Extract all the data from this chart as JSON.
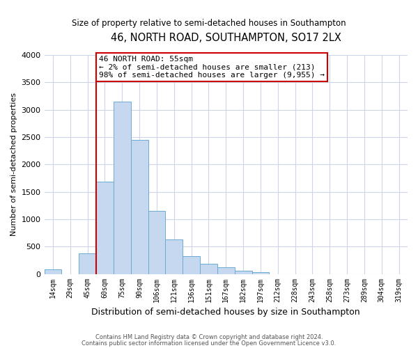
{
  "title": "46, NORTH ROAD, SOUTHAMPTON, SO17 2LX",
  "subtitle": "Size of property relative to semi-detached houses in Southampton",
  "xlabel": "Distribution of semi-detached houses by size in Southampton",
  "ylabel": "Number of semi-detached properties",
  "bin_labels": [
    "14sqm",
    "29sqm",
    "45sqm",
    "60sqm",
    "75sqm",
    "90sqm",
    "106sqm",
    "121sqm",
    "136sqm",
    "151sqm",
    "167sqm",
    "182sqm",
    "197sqm",
    "212sqm",
    "228sqm",
    "243sqm",
    "258sqm",
    "273sqm",
    "289sqm",
    "304sqm",
    "319sqm"
  ],
  "bin_values": [
    80,
    0,
    375,
    1680,
    3150,
    2450,
    1150,
    630,
    330,
    185,
    120,
    60,
    30,
    0,
    0,
    0,
    0,
    0,
    0,
    0,
    0
  ],
  "bar_color": "#c5d8f0",
  "bar_edge_color": "#6aabd2",
  "property_sqm": 55,
  "annotation_title": "46 NORTH ROAD: 55sqm",
  "annotation_line1": "← 2% of semi-detached houses are smaller (213)",
  "annotation_line2": "98% of semi-detached houses are larger (9,955) →",
  "annotation_box_color": "#ffffff",
  "annotation_box_edge": "#cc0000",
  "property_vline_color": "#cc0000",
  "ylim": [
    0,
    4000
  ],
  "footnote1": "Contains HM Land Registry data © Crown copyright and database right 2024.",
  "footnote2": "Contains public sector information licensed under the Open Government Licence v3.0.",
  "background_color": "#ffffff",
  "grid_color": "#ccd6e8"
}
